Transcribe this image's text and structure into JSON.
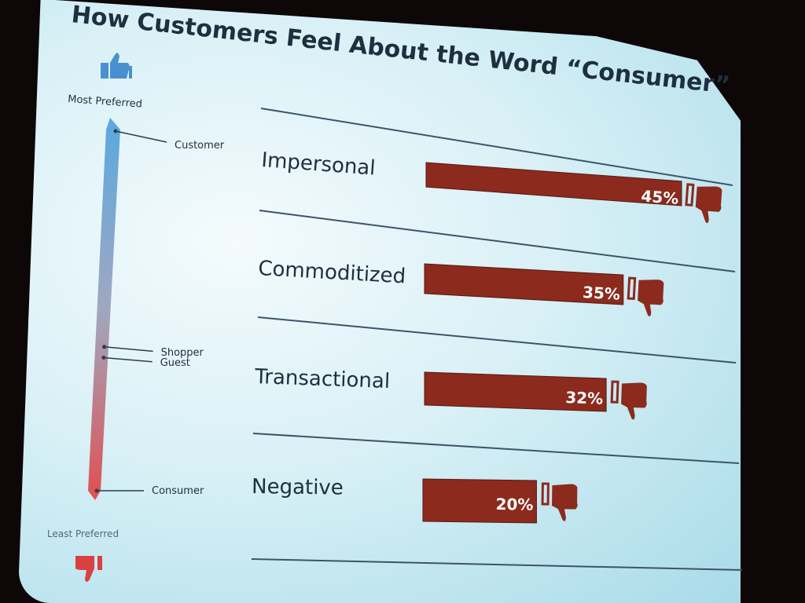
{
  "chart_data": {
    "type": "bar",
    "title": "How Customers Feel About the Word “Consumer”",
    "categories": [
      "Impersonal",
      "Commoditized",
      "Transactional",
      "Negative"
    ],
    "values": [
      45,
      35,
      32,
      20
    ],
    "value_labels": [
      "45%",
      "35%",
      "32%",
      "20%"
    ],
    "xlim": [
      0,
      45
    ],
    "orientation": "horizontal",
    "bar_color": "#8b2a1d",
    "icon": "thumbs-down-icon"
  },
  "scale": {
    "top_label": "Most Preferred",
    "bottom_label": "Least Preferred",
    "top_icon": "thumbs-up-icon",
    "bottom_icon": "thumbs-down-icon",
    "top_color": "#5aa8e0",
    "bottom_color": "#e05050",
    "terms": [
      {
        "label": "Customer",
        "level": 0.0
      },
      {
        "label": "Shopper",
        "level": 0.6
      },
      {
        "label": "Guest",
        "level": 0.63
      },
      {
        "label": "Consumer",
        "level": 1.0
      }
    ]
  }
}
